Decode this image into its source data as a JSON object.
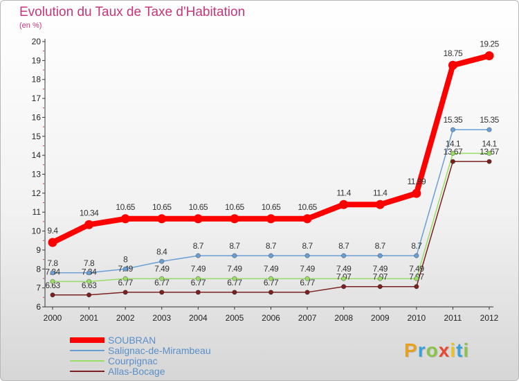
{
  "chart_data": {
    "type": "line",
    "title": "Evolution du Taux de Taxe d'Habitation",
    "ylabel": "(en %)",
    "xlabel": "",
    "ylim": [
      6,
      20
    ],
    "yticks": [
      "6",
      "7",
      "8",
      "9",
      "10",
      "11",
      "12",
      "13",
      "14",
      "15",
      "16",
      "17",
      "18",
      "19",
      "20"
    ],
    "categories": [
      "2000",
      "2001",
      "2002",
      "2003",
      "2004",
      "2005",
      "2006",
      "2007",
      "2008",
      "2009",
      "2010",
      "2011",
      "2012"
    ],
    "series": [
      {
        "name": "SOUBRAN",
        "color": "#ff0000",
        "values": [
          9.4,
          10.34,
          10.65,
          10.65,
          10.65,
          10.65,
          10.65,
          10.65,
          11.4,
          11.4,
          11.99,
          18.75,
          19.25
        ],
        "labels": [
          "9.4",
          "10.34",
          "10.65",
          "10.65",
          "10.65",
          "10.65",
          "10.65",
          "10.65",
          "11.4",
          "11.4",
          "11.99",
          "18.75",
          "19.25"
        ]
      },
      {
        "name": "Salignac-de-Mirambeau",
        "color": "#6a9fd4",
        "values": [
          7.8,
          7.8,
          8,
          8.4,
          8.7,
          8.7,
          8.7,
          8.7,
          8.7,
          8.7,
          8.7,
          15.35,
          15.35
        ],
        "labels": [
          "7.8",
          "7.8",
          "8",
          "8.4",
          "8.7",
          "8.7",
          "8.7",
          "8.7",
          "8.7",
          "8.7",
          "8.7",
          "15.35",
          "15.35"
        ]
      },
      {
        "name": "Courpignac",
        "color": "#99dd66",
        "values": [
          7.34,
          7.34,
          7.49,
          7.49,
          7.49,
          7.49,
          7.49,
          7.49,
          7.49,
          7.49,
          7.49,
          14.1,
          14.1
        ],
        "labels": [
          "7.34",
          "7.34",
          "7.49",
          "7.49",
          "7.49",
          "7.49",
          "7.49",
          "7.49",
          "7.49",
          "7.49",
          "7.49",
          "14.1",
          "14.1"
        ]
      },
      {
        "name": "Allas-Bocage",
        "color": "#7a2020",
        "values": [
          6.63,
          6.63,
          6.77,
          6.77,
          6.77,
          6.77,
          6.77,
          6.77,
          7.07,
          7.07,
          7.07,
          13.67,
          13.67
        ],
        "labels": [
          "6.63",
          "6.63",
          "6.77",
          "6.77",
          "6.77",
          "6.77",
          "6.77",
          "6.77",
          "7.07",
          "7.07",
          "7.07",
          "13.67",
          "13.67"
        ]
      }
    ],
    "legend_position": "bottom-left",
    "grid": false
  },
  "branding": {
    "logo_letters": [
      "P",
      "r",
      "o",
      "x",
      "i",
      "t",
      "i"
    ],
    "logo_colors": [
      "#e8a020",
      "#3aa0d8",
      "#8bc34a",
      "#e84830",
      "#f0c020",
      "#3aa0d8",
      "#8bc34a"
    ]
  }
}
